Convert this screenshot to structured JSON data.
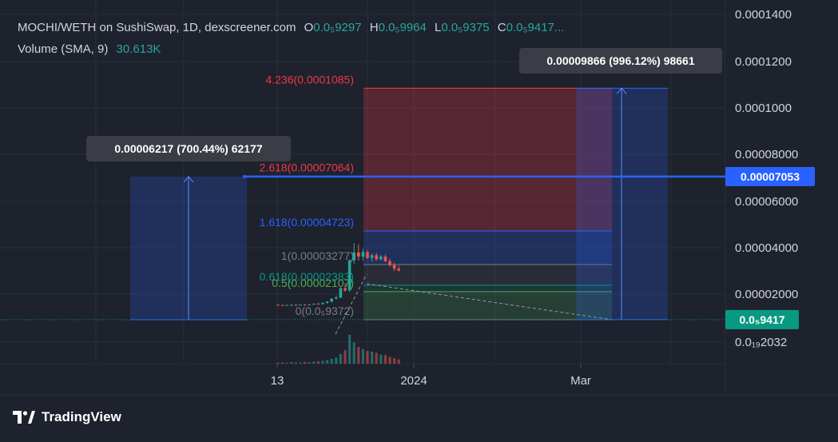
{
  "header": {
    "symbol_line": "MOCHI/WETH on SushiSwap, 1D, dexscreener.com",
    "ohlc": [
      {
        "k": "O",
        "v": "0.0₅9297"
      },
      {
        "k": "H",
        "v": "0.0₅9964"
      },
      {
        "k": "L",
        "v": "0.0₅9375"
      },
      {
        "k": "C",
        "v": "0.0₅9417..."
      }
    ],
    "volume_label": "Volume (SMA, 9)",
    "volume_value": "30.613K"
  },
  "brand": {
    "name": "TradingView",
    "logo_icon": "tradingview-logo-icon"
  },
  "colors": {
    "background": "#1e222d",
    "grid": "#2a2e39",
    "up": "#26a69a",
    "down": "#ef5350",
    "line": "#2962ff",
    "fib_red": "#f23645",
    "fib_blue": "#2962ff",
    "fib_gray": "#787b86",
    "fib_teal": "#089981",
    "fib_green": "#4caf50"
  },
  "chart_data": {
    "type": "candlestick",
    "title": "MOCHI/WETH on SushiSwap, 1D, dexscreener.com",
    "x_ticks": [
      "13",
      "2024",
      "Mar"
    ],
    "y_axis": {
      "scale": "log",
      "ticks": [
        "0.0001400",
        "0.0001200",
        "0.0001000",
        "0.00008000",
        "0.00006000",
        "0.00004000",
        "0.00002000",
        "0.0₁₉2032"
      ],
      "tick_values": [
        0.00014,
        0.00012,
        0.0001,
        8e-05,
        6e-05,
        4e-05,
        2e-05,
        2.032e-12
      ]
    },
    "price_labels": [
      {
        "text": "0.00007053",
        "value": 7.053e-05,
        "color": "#2962ff"
      },
      {
        "text": "0.0₅9417",
        "value": 9.417e-07,
        "color": "#089981"
      }
    ],
    "horizontal_line": {
      "value": 7.053e-05
    },
    "fib_levels": [
      {
        "ratio": 4.236,
        "label": "4.236(0.0001085)",
        "value": 0.0001085,
        "color": "#f23645"
      },
      {
        "ratio": 2.618,
        "label": "2.618(0.00007064)",
        "value": 7.064e-05,
        "color": "#f23645"
      },
      {
        "ratio": 1.618,
        "label": "1.618(0.00004723)",
        "value": 4.723e-05,
        "color": "#2962ff"
      },
      {
        "ratio": 1,
        "label": "1(0.00003277)",
        "value": 3.277e-05,
        "color": "#787b86"
      },
      {
        "ratio": 0.618,
        "label": "0.618(0.00002383)",
        "value": 2.383e-05,
        "color": "#089981"
      },
      {
        "ratio": 0.5,
        "label": "0.5(0.00002107)",
        "value": 2.107e-05,
        "color": "#4caf50"
      },
      {
        "ratio": 0,
        "label": "0(0.0₅9372)",
        "value": 9.372e-07,
        "color": "#787b86"
      }
    ],
    "measurements": [
      {
        "label": "0.00006217 (700.44%) 62177",
        "from": 9e-07,
        "to": 7.053e-05
      },
      {
        "label": "0.00009866 (996.12%) 98661",
        "from": 9.417e-07,
        "to": 0.0001085
      }
    ],
    "volume_sma_9": "30.613K",
    "series": [
      {
        "name": "price",
        "points": [
          {
            "o": 1.2e-05,
            "h": 1.25e-05,
            "l": 1.15e-05,
            "c": 1.18e-05
          },
          {
            "o": 1.18e-05,
            "h": 1.22e-05,
            "l": 1.14e-05,
            "c": 1.17e-05
          },
          {
            "o": 1.17e-05,
            "h": 1.21e-05,
            "l": 1.13e-05,
            "c": 1.19e-05
          },
          {
            "o": 1.19e-05,
            "h": 1.24e-05,
            "l": 1.16e-05,
            "c": 1.2e-05
          },
          {
            "o": 1.2e-05,
            "h": 1.26e-05,
            "l": 1.17e-05,
            "c": 1.18e-05
          },
          {
            "o": 1.18e-05,
            "h": 1.23e-05,
            "l": 1.15e-05,
            "c": 1.21e-05
          },
          {
            "o": 1.21e-05,
            "h": 1.27e-05,
            "l": 1.18e-05,
            "c": 1.2e-05
          },
          {
            "o": 1.2e-05,
            "h": 1.25e-05,
            "l": 1.16e-05,
            "c": 1.22e-05
          },
          {
            "o": 1.22e-05,
            "h": 1.3e-05,
            "l": 1.2e-05,
            "c": 1.28e-05
          },
          {
            "o": 1.28e-05,
            "h": 1.35e-05,
            "l": 1.24e-05,
            "c": 1.26e-05
          },
          {
            "o": 1.26e-05,
            "h": 1.38e-05,
            "l": 1.22e-05,
            "c": 1.34e-05
          },
          {
            "o": 1.34e-05,
            "h": 1.48e-05,
            "l": 1.3e-05,
            "c": 1.44e-05
          },
          {
            "o": 1.44e-05,
            "h": 1.7e-05,
            "l": 1.38e-05,
            "c": 1.66e-05
          },
          {
            "o": 1.66e-05,
            "h": 1.9e-05,
            "l": 1.6e-05,
            "c": 1.74e-05
          },
          {
            "o": 1.74e-05,
            "h": 2.3e-05,
            "l": 1.7e-05,
            "c": 2.26e-05
          },
          {
            "o": 2.26e-05,
            "h": 2.48e-05,
            "l": 2.1e-05,
            "c": 2.16e-05
          },
          {
            "o": 2.16e-05,
            "h": 3.5e-05,
            "l": 2.1e-05,
            "c": 3.46e-05
          },
          {
            "o": 3.46e-05,
            "h": 4.2e-05,
            "l": 3.3e-05,
            "c": 3.8e-05
          },
          {
            "o": 3.8e-05,
            "h": 4.15e-05,
            "l": 3.45e-05,
            "c": 3.62e-05
          },
          {
            "o": 3.62e-05,
            "h": 3.95e-05,
            "l": 3.45e-05,
            "c": 3.82e-05
          },
          {
            "o": 3.82e-05,
            "h": 3.9e-05,
            "l": 3.5e-05,
            "c": 3.56e-05
          },
          {
            "o": 3.56e-05,
            "h": 3.75e-05,
            "l": 3.4e-05,
            "c": 3.68e-05
          },
          {
            "o": 3.68e-05,
            "h": 3.78e-05,
            "l": 3.45e-05,
            "c": 3.5e-05
          },
          {
            "o": 3.5e-05,
            "h": 3.7e-05,
            "l": 3.45e-05,
            "c": 3.62e-05
          },
          {
            "o": 3.62e-05,
            "h": 3.72e-05,
            "l": 3.38e-05,
            "c": 3.42e-05
          },
          {
            "o": 3.42e-05,
            "h": 3.52e-05,
            "l": 3.18e-05,
            "c": 3.25e-05
          },
          {
            "o": 3.25e-05,
            "h": 3.35e-05,
            "l": 3e-05,
            "c": 3.1e-05
          },
          {
            "o": 3.1e-05,
            "h": 3.22e-05,
            "l": 2.98e-05,
            "c": 3.02e-05
          }
        ]
      },
      {
        "name": "volume",
        "values": [
          0.03,
          0.04,
          0.03,
          0.05,
          0.04,
          0.04,
          0.06,
          0.05,
          0.07,
          0.08,
          0.09,
          0.12,
          0.16,
          0.2,
          0.32,
          0.45,
          0.95,
          0.7,
          0.55,
          0.48,
          0.42,
          0.4,
          0.36,
          0.3,
          0.28,
          0.22,
          0.18,
          0.14
        ]
      }
    ]
  }
}
